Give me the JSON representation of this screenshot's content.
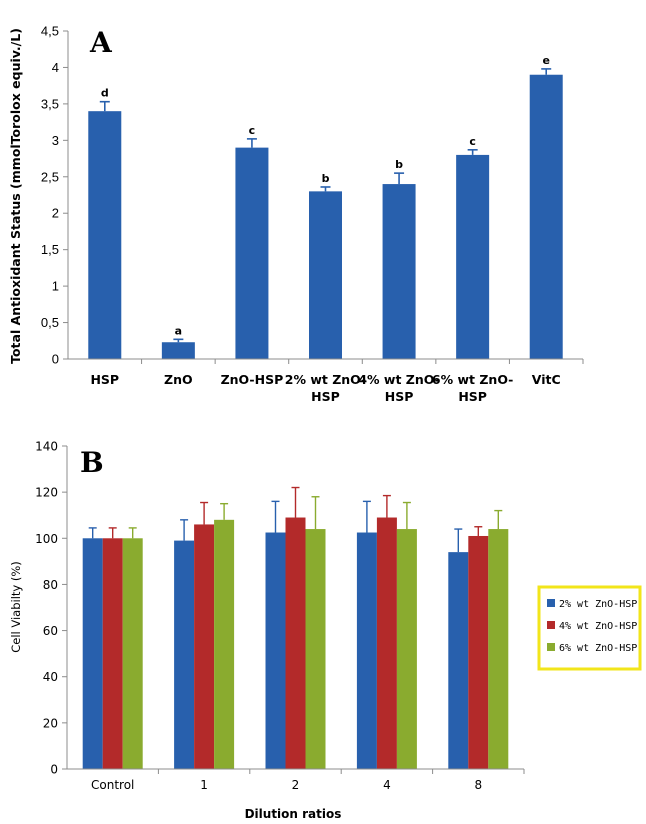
{
  "chart_data": [
    {
      "type": "bar",
      "panel_label": "A",
      "title": "",
      "xlabel": "",
      "ylabel": "Total Antioxidant Status (mmolTorolox equiv./L)",
      "ylim": [
        0,
        4.5
      ],
      "yticks": [
        "0",
        "0,5",
        "1",
        "1,5",
        "2",
        "2,5",
        "3",
        "3,5",
        "4",
        "4,5"
      ],
      "categories": [
        [
          "HSP"
        ],
        [
          "ZnO"
        ],
        [
          "ZnO-HSP"
        ],
        [
          "2% wt ZnO-",
          "HSP"
        ],
        [
          "4% wt ZnO-",
          "HSP"
        ],
        [
          "6% wt ZnO-",
          "HSP"
        ],
        [
          "VitC"
        ]
      ],
      "values": [
        3.4,
        0.23,
        2.9,
        2.3,
        2.4,
        2.8,
        3.9
      ],
      "errors": [
        0.13,
        0.04,
        0.12,
        0.06,
        0.15,
        0.07,
        0.08
      ],
      "significance": [
        "d",
        "a",
        "c",
        "b",
        "b",
        "c",
        "e"
      ],
      "color": "#2860ad"
    },
    {
      "type": "bar",
      "panel_label": "B",
      "title": "",
      "xlabel": "Dilution ratios",
      "ylabel": "Cell Viabilty (%)",
      "ylim": [
        0,
        140
      ],
      "yticks": [
        "0",
        "20",
        "40",
        "60",
        "80",
        "100",
        "120",
        "140"
      ],
      "categories": [
        "Control",
        "1",
        "2",
        "4",
        "8"
      ],
      "series": [
        {
          "name": "2% wt ZnO-HSP",
          "color": "#2860ad",
          "values": [
            100,
            99,
            102.5,
            102.5,
            94
          ],
          "errors": [
            4.5,
            9,
            13.5,
            13.5,
            10
          ]
        },
        {
          "name": "4% wt ZnO-HSP",
          "color": "#b32a2a",
          "values": [
            100,
            106,
            109,
            109,
            101
          ],
          "errors": [
            4.5,
            9.5,
            13,
            9.5,
            4
          ]
        },
        {
          "name": "6% wt ZnO-HSP",
          "color": "#8aab2f",
          "values": [
            100,
            108,
            104,
            104,
            104
          ],
          "errors": [
            4.5,
            7,
            14,
            11.5,
            8
          ]
        }
      ],
      "legend_position": "right",
      "legend_border_color": "#f2e51a"
    }
  ]
}
